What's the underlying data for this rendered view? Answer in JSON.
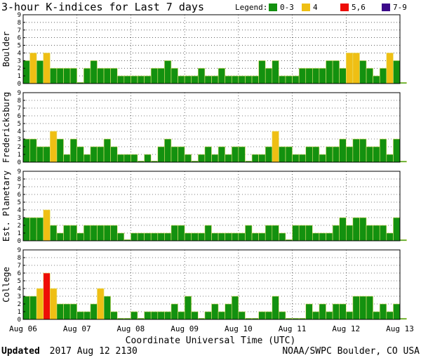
{
  "chart_data": {
    "type": "bar",
    "title": "3-hour K-indices for Last 7 days",
    "legend": {
      "label": "Legend:",
      "placement": "top-right",
      "entries": [
        {
          "label": "0-3",
          "color": "#13910f"
        },
        {
          "label": "4",
          "color": "#efbf14"
        },
        {
          "label": "5,6",
          "color": "#ee0d06"
        },
        {
          "label": "7-9",
          "color": "#3c0a8a"
        }
      ]
    },
    "xlabel": "Coordinate Universal Time (UTC)",
    "x_ticks": [
      "Aug 06",
      "Aug 07",
      "Aug 08",
      "Aug 09",
      "Aug 10",
      "Aug 11",
      "Aug 12",
      "Aug 13"
    ],
    "ylim": [
      0,
      9
    ],
    "y_ticks": [
      "0",
      "1",
      "2",
      "3",
      "4",
      "5",
      "6",
      "7",
      "8",
      "9"
    ],
    "interval_hours": 3,
    "panels": [
      {
        "name": "Boulder",
        "values": [
          3,
          4,
          3,
          4,
          2,
          2,
          2,
          2,
          0,
          2,
          3,
          2,
          2,
          2,
          1,
          1,
          1,
          1,
          1,
          2,
          2,
          3,
          2,
          1,
          1,
          1,
          2,
          1,
          1,
          2,
          1,
          1,
          1,
          1,
          1,
          3,
          2,
          3,
          1,
          1,
          1,
          2,
          2,
          2,
          2,
          3,
          3,
          2,
          4,
          4,
          3,
          2,
          1,
          2,
          4,
          3,
          0
        ]
      },
      {
        "name": "Fredericksburg",
        "values": [
          3,
          3,
          2,
          2,
          4,
          3,
          1,
          3,
          2,
          1,
          2,
          2,
          3,
          2,
          1,
          1,
          1,
          0,
          1,
          0,
          2,
          3,
          2,
          2,
          1,
          0,
          1,
          2,
          1,
          2,
          1,
          2,
          2,
          0,
          1,
          1,
          2,
          4,
          2,
          2,
          1,
          1,
          2,
          2,
          1,
          2,
          2,
          3,
          2,
          3,
          3,
          2,
          2,
          3,
          1,
          3,
          0
        ]
      },
      {
        "name": "Est. Planetary",
        "values": [
          3,
          3,
          3,
          4,
          2,
          1,
          2,
          2,
          1,
          2,
          2,
          2,
          2,
          2,
          1,
          0,
          1,
          1,
          1,
          1,
          1,
          1,
          2,
          2,
          1,
          1,
          1,
          2,
          1,
          1,
          1,
          1,
          1,
          2,
          1,
          1,
          2,
          2,
          1,
          0,
          2,
          2,
          2,
          1,
          1,
          1,
          2,
          3,
          2,
          3,
          3,
          2,
          2,
          2,
          1,
          3,
          0
        ]
      },
      {
        "name": "College",
        "values": [
          3,
          3,
          4,
          6,
          4,
          2,
          2,
          2,
          1,
          1,
          2,
          4,
          3,
          1,
          0,
          0,
          1,
          0,
          1,
          1,
          1,
          1,
          2,
          1,
          3,
          1,
          0,
          1,
          2,
          1,
          2,
          3,
          1,
          0,
          0,
          1,
          1,
          3,
          1,
          0,
          0,
          0,
          2,
          1,
          2,
          1,
          2,
          2,
          1,
          3,
          3,
          3,
          1,
          2,
          1,
          2,
          0
        ]
      }
    ]
  },
  "footer": {
    "updated_label": "Updated",
    "updated_value": "2017 Aug 12 2130",
    "credit": "NOAA/SWPC Boulder, CO USA"
  }
}
